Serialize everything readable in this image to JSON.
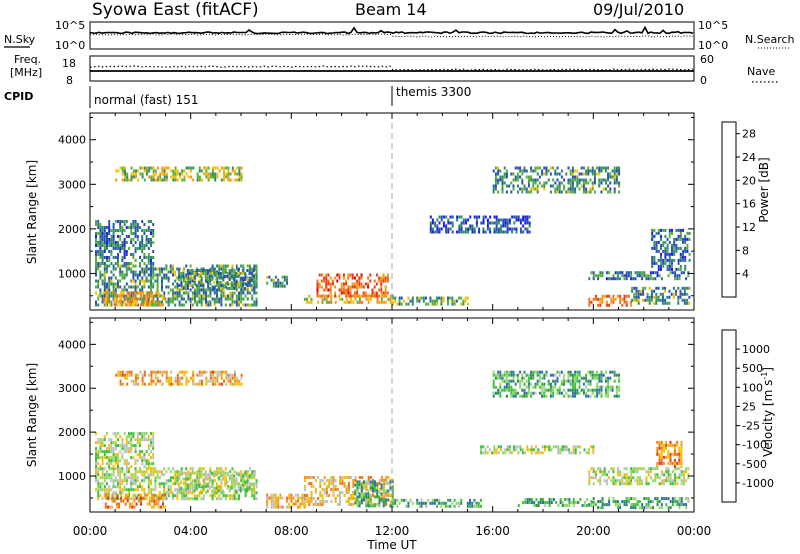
{
  "header": {
    "title": "Syowa East (fitACF)",
    "beam": "Beam 14",
    "date": "09/Jul/2010"
  },
  "top_panels": {
    "nsky_label": "N.Sky",
    "nsky_ticks": [
      "10^5",
      "10^0"
    ],
    "nsearch_label": "N.Search",
    "nsearch_ticks": [
      "10^5",
      "10^0"
    ],
    "freq_label_1": "Freq.",
    "freq_label_2": "[MHz]",
    "freq_ticks": [
      "18",
      "8"
    ],
    "nave_label": "Nave",
    "nave_ticks": [
      "60",
      "0"
    ],
    "cpid_label": "CPID",
    "modes": [
      {
        "label": "normal (fast) 151",
        "start_hour": 0
      },
      {
        "label": "themis 3300",
        "start_hour": 12
      }
    ]
  },
  "chart_data": [
    {
      "type": "heatmap",
      "panel": "power",
      "ylabel": "Slant Range [km]",
      "xlabel": "",
      "x_ticks": [
        "00:00",
        "04:00",
        "08:00",
        "12:00",
        "16:00",
        "20:00",
        "00:00"
      ],
      "xlim_hours": [
        0,
        24
      ],
      "ylim_km": [
        180,
        4600
      ],
      "y_ticks": [
        1000,
        2000,
        3000,
        4000
      ],
      "colorbar": {
        "label": "Power [dB]",
        "ticks": [
          4,
          8,
          12,
          16,
          20,
          24,
          28
        ],
        "range": [
          0,
          30
        ],
        "colors": [
          "#1f1fe6",
          "#2a52b5",
          "#2f8a66",
          "#5aac3c",
          "#f2c000",
          "#f29a1c",
          "#f07018",
          "#e53a1a",
          "#e00000"
        ]
      },
      "regions": [
        {
          "t0": 0.2,
          "t1": 6.6,
          "r0": 300,
          "r1": 1200,
          "level": 0.3
        },
        {
          "t0": 0.5,
          "t1": 3.0,
          "r0": 300,
          "r1": 600,
          "level": 0.6
        },
        {
          "t0": 0.2,
          "t1": 2.5,
          "r0": 1200,
          "r1": 2200,
          "level": 0.25
        },
        {
          "t0": 3.5,
          "t1": 6.5,
          "r0": 650,
          "r1": 1100,
          "level": 0.3
        },
        {
          "t0": 7.0,
          "t1": 7.8,
          "r0": 700,
          "r1": 950,
          "level": 0.3
        },
        {
          "t0": 8.5,
          "t1": 12.0,
          "r0": 320,
          "r1": 520,
          "level": 0.55
        },
        {
          "t0": 9.0,
          "t1": 11.8,
          "r0": 480,
          "r1": 1000,
          "level": 0.75
        },
        {
          "t0": 12.0,
          "t1": 15.0,
          "r0": 300,
          "r1": 480,
          "level": 0.35
        },
        {
          "t0": 13.5,
          "t1": 17.5,
          "r0": 1900,
          "r1": 2300,
          "level": 0.15
        },
        {
          "t0": 19.8,
          "t1": 21.5,
          "r0": 300,
          "r1": 520,
          "level": 0.7
        },
        {
          "t0": 19.8,
          "t1": 23.8,
          "r0": 900,
          "r1": 1050,
          "level": 0.25
        },
        {
          "t0": 21.5,
          "t1": 23.8,
          "r0": 300,
          "r1": 700,
          "level": 0.3
        },
        {
          "t0": 22.3,
          "t1": 23.8,
          "r0": 1100,
          "r1": 2000,
          "level": 0.2
        },
        {
          "t0": 1.0,
          "t1": 6.0,
          "r0": 3100,
          "r1": 3400,
          "level": 0.45
        },
        {
          "t0": 16.0,
          "t1": 21.0,
          "r0": 2800,
          "r1": 3400,
          "level": 0.3
        }
      ]
    },
    {
      "type": "heatmap",
      "panel": "velocity",
      "ylabel": "Slant Range [km]",
      "xlabel": "Time UT",
      "x_ticks": [
        "00:00",
        "04:00",
        "08:00",
        "12:00",
        "16:00",
        "20:00",
        "00:00"
      ],
      "xlim_hours": [
        0,
        24
      ],
      "ylim_km": [
        180,
        4600
      ],
      "y_ticks": [
        1000,
        2000,
        3000,
        4000
      ],
      "colorbar": {
        "label": "Velocity [m s^-1]",
        "ticks": [
          "1000",
          "500",
          "100",
          "25",
          "-25",
          "-100",
          "-500",
          "-1000"
        ],
        "colors": [
          "#2040d0",
          "#2f6eaf",
          "#2f8c5a",
          "#3fbf3a",
          "#8fd96a",
          "#bfbfbf",
          "#f2c000",
          "#f29a1c",
          "#f07018",
          "#e53a1a",
          "#e00000"
        ]
      },
      "regions": [
        {
          "t0": 0.2,
          "t1": 6.6,
          "r0": 500,
          "r1": 1200,
          "level": 0.45
        },
        {
          "t0": 0.5,
          "t1": 3.0,
          "r0": 300,
          "r1": 600,
          "level": 0.7
        },
        {
          "t0": 0.2,
          "t1": 2.5,
          "r0": 1200,
          "r1": 2000,
          "level": 0.45
        },
        {
          "t0": 3.5,
          "t1": 6.5,
          "r0": 650,
          "r1": 1100,
          "level": 0.45
        },
        {
          "t0": 7.0,
          "t1": 8.5,
          "r0": 300,
          "r1": 600,
          "level": 0.62
        },
        {
          "t0": 8.5,
          "t1": 12.0,
          "r0": 320,
          "r1": 1000,
          "level": 0.62
        },
        {
          "t0": 10.5,
          "t1": 12.0,
          "r0": 320,
          "r1": 900,
          "level": 0.3
        },
        {
          "t0": 12.0,
          "t1": 15.5,
          "r0": 300,
          "r1": 480,
          "level": 0.3
        },
        {
          "t0": 15.5,
          "t1": 20.0,
          "r0": 1500,
          "r1": 1700,
          "level": 0.45
        },
        {
          "t0": 17.0,
          "t1": 20.0,
          "r0": 300,
          "r1": 500,
          "level": 0.3
        },
        {
          "t0": 19.8,
          "t1": 23.8,
          "r0": 300,
          "r1": 520,
          "level": 0.3
        },
        {
          "t0": 19.8,
          "t1": 23.8,
          "r0": 850,
          "r1": 1200,
          "level": 0.45
        },
        {
          "t0": 22.5,
          "t1": 23.5,
          "r0": 1200,
          "r1": 1800,
          "level": 0.72
        },
        {
          "t0": 1.0,
          "t1": 6.0,
          "r0": 3100,
          "r1": 3400,
          "level": 0.65
        },
        {
          "t0": 16.0,
          "t1": 21.0,
          "r0": 2800,
          "r1": 3400,
          "level": 0.3
        }
      ]
    }
  ]
}
